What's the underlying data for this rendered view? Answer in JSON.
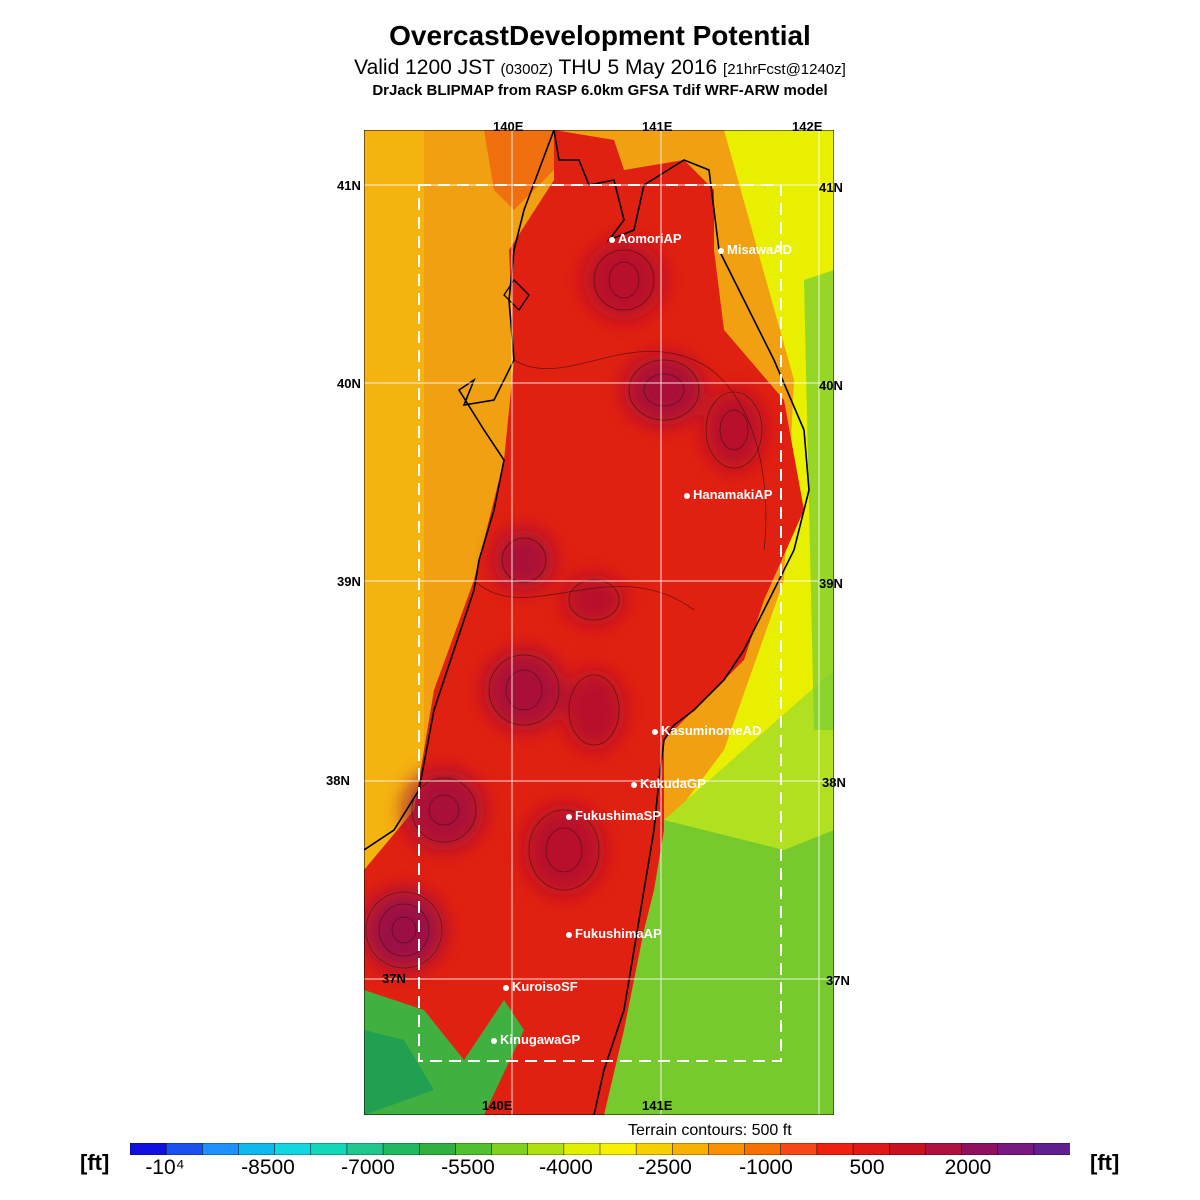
{
  "title": "OvercastDevelopment Potential",
  "subtitle_main": "Valid 1200 JST",
  "subtitle_utc": "(0300Z)",
  "subtitle_date": "THU 5 May 2016",
  "subtitle_fcst": "[21hrFcst@1240z]",
  "model_line": "DrJack BLIPMAP from RASP 6.0km GFSA Tdif WRF-ARW model",
  "lon_labels": [
    "140E",
    "141E",
    "142E"
  ],
  "lat_labels": [
    "41N",
    "40N",
    "39N",
    "38N",
    "37N"
  ],
  "stations": [
    {
      "name": "AomoriAP",
      "lat": 40.73,
      "lon": 140.69
    },
    {
      "name": "MisawaAD",
      "lat": 40.67,
      "lon": 141.37
    },
    {
      "name": "HanamakiAP",
      "lat": 39.43,
      "lon": 141.14
    },
    {
      "name": "KasuminomeAD",
      "lat": 38.24,
      "lon": 140.92
    },
    {
      "name": "KakudaGP",
      "lat": 38.0,
      "lon": 140.8
    },
    {
      "name": "FukushimaSP",
      "lat": 37.84,
      "lon": 140.48
    },
    {
      "name": "FukushimaAP",
      "lat": 37.23,
      "lon": 140.48
    },
    {
      "name": "KuroisoSF",
      "lat": 36.97,
      "lon": 140.12
    },
    {
      "name": "KinugawaGP",
      "lat": 36.7,
      "lon": 140.05
    }
  ],
  "terrain_note": "Terrain contours: 500 ft",
  "unit_label": "[ft]",
  "colorbar": {
    "tick_labels": [
      "-10⁴",
      "-8500",
      "-7000",
      "-5500",
      "-4000",
      "-2500",
      "-1000",
      "500",
      "2000"
    ],
    "colors": [
      "#1010e0",
      "#1a50f0",
      "#1e90ff",
      "#10b8f0",
      "#10d8e0",
      "#10d8b8",
      "#20c890",
      "#20b860",
      "#30b040",
      "#50c030",
      "#80d020",
      "#b0e010",
      "#e0f000",
      "#f8f000",
      "#f8d000",
      "#f8b000",
      "#f89000",
      "#f87000",
      "#f84818",
      "#f02010",
      "#e01818",
      "#c81020",
      "#b01040",
      "#901060",
      "#781880",
      "#602090"
    ]
  }
}
